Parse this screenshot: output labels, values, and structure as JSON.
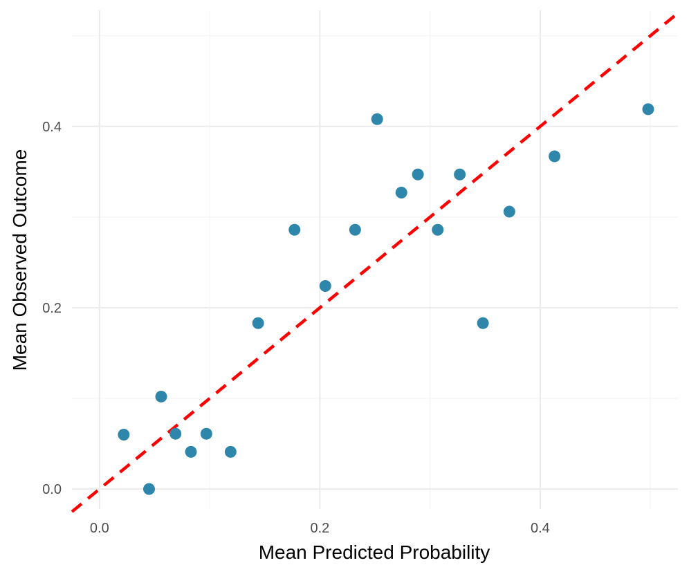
{
  "chart_data": {
    "type": "scatter",
    "title": "",
    "xlabel": "Mean Predicted Probability",
    "ylabel": "Mean Observed Outcome",
    "xlim": [
      -0.025,
      0.525
    ],
    "ylim": [
      -0.022,
      0.528
    ],
    "x_ticks": [
      0.0,
      0.2,
      0.4
    ],
    "x_tick_labels": [
      "0.0",
      "0.2",
      "0.4"
    ],
    "y_ticks": [
      0.0,
      0.2,
      0.4
    ],
    "y_tick_labels": [
      "0.0",
      "0.2",
      "0.4"
    ],
    "x_minor_ticks": [
      0.1,
      0.3,
      0.5
    ],
    "y_minor_ticks": [
      0.1,
      0.3,
      0.5
    ],
    "grid": true,
    "reference_line": {
      "slope": 1,
      "intercept": 0,
      "style": "dashed",
      "color": "#ff0000"
    },
    "point_color": "#2e86ab",
    "series": [
      {
        "points": [
          {
            "x": 0.022,
            "y": 0.06
          },
          {
            "x": 0.045,
            "y": 0.0
          },
          {
            "x": 0.056,
            "y": 0.102
          },
          {
            "x": 0.069,
            "y": 0.061
          },
          {
            "x": 0.083,
            "y": 0.041
          },
          {
            "x": 0.097,
            "y": 0.061
          },
          {
            "x": 0.119,
            "y": 0.041
          },
          {
            "x": 0.144,
            "y": 0.183
          },
          {
            "x": 0.177,
            "y": 0.286
          },
          {
            "x": 0.205,
            "y": 0.224
          },
          {
            "x": 0.232,
            "y": 0.286
          },
          {
            "x": 0.252,
            "y": 0.408
          },
          {
            "x": 0.274,
            "y": 0.327
          },
          {
            "x": 0.289,
            "y": 0.347
          },
          {
            "x": 0.307,
            "y": 0.286
          },
          {
            "x": 0.327,
            "y": 0.347
          },
          {
            "x": 0.348,
            "y": 0.183
          },
          {
            "x": 0.372,
            "y": 0.306
          },
          {
            "x": 0.413,
            "y": 0.367
          },
          {
            "x": 0.498,
            "y": 0.419
          }
        ]
      }
    ]
  }
}
